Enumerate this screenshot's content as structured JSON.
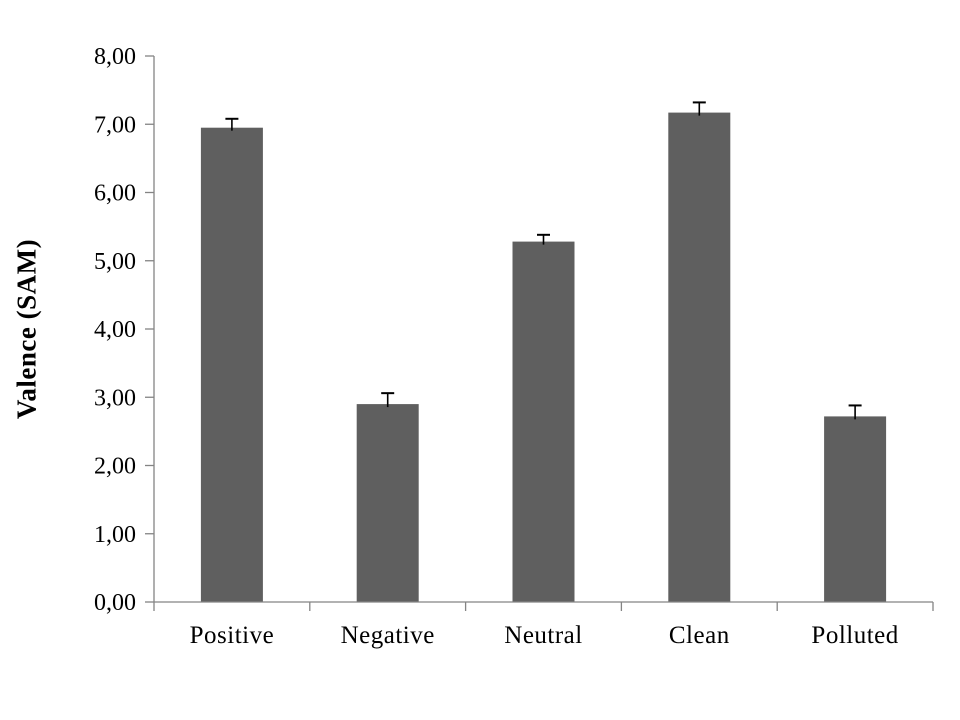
{
  "chart_data": {
    "type": "bar",
    "title": "",
    "xlabel": "",
    "ylabel": "Valence (SAM)",
    "categories": [
      "Positive",
      "Negative",
      "Neutral",
      "Clean",
      "Polluted"
    ],
    "values": [
      6.95,
      2.9,
      5.28,
      7.17,
      2.72
    ],
    "errors": [
      0.13,
      0.16,
      0.1,
      0.15,
      0.16
    ],
    "ylim": [
      0,
      8
    ],
    "ytick_step": 1,
    "ytick_labels": [
      "0,00",
      "1,00",
      "2,00",
      "3,00",
      "4,00",
      "5,00",
      "6,00",
      "7,00",
      "8,00"
    ],
    "decimal_separator": ",",
    "grid": false,
    "legend": null,
    "error_bars": "upper-only",
    "colors": {
      "bar_fill": "#5f5f5f",
      "axis_line": "#848484",
      "tick_line": "#848484",
      "error_bar": "#000000",
      "text": "#000000",
      "background": "#ffffff"
    }
  }
}
